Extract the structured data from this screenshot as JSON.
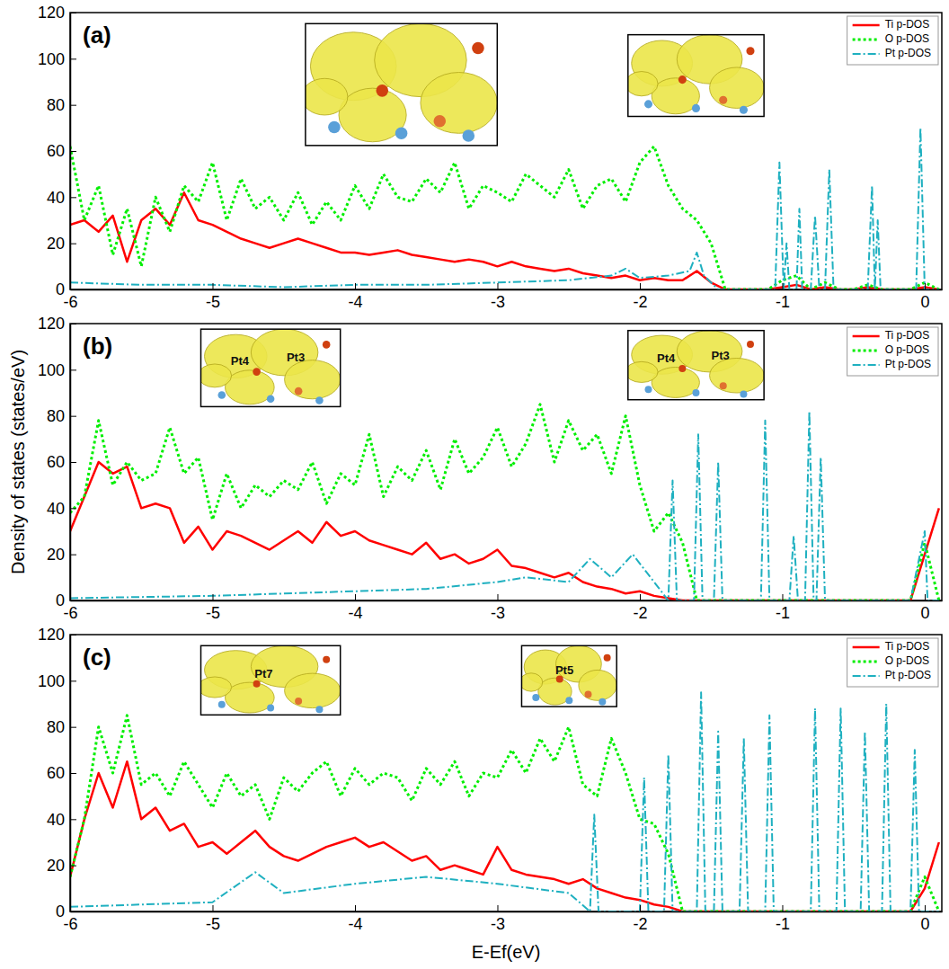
{
  "figure": {
    "y_label": "Density of states (states/eV)",
    "x_label": "E-Ef(eV)"
  },
  "chart_data": [
    {
      "type": "line",
      "title": "(a)",
      "x": [
        -6,
        -5.9,
        -5.8,
        -5.7,
        -5.6,
        -5.5,
        -5.4,
        -5.3,
        -5.2,
        -5.1,
        -5,
        -4.9,
        -4.8,
        -4.7,
        -4.6,
        -4.5,
        -4.4,
        -4.3,
        -4.2,
        -4.1,
        -4,
        -3.9,
        -3.8,
        -3.7,
        -3.6,
        -3.5,
        -3.4,
        -3.3,
        -3.2,
        -3.1,
        -3,
        -2.9,
        -2.8,
        -2.7,
        -2.6,
        -2.5,
        -2.4,
        -2.3,
        -2.2,
        -2.1,
        -2,
        -1.9,
        -1.8,
        -1.7,
        -1.6,
        -1.5,
        -1.4,
        -1.3,
        -1.2,
        -1.1,
        -1,
        -0.9,
        -0.8,
        -0.7,
        -0.6,
        -0.5,
        -0.4,
        -0.3,
        -0.2,
        -0.1,
        0,
        0.1
      ],
      "xlim": [
        -6,
        0.12
      ],
      "xticks": [
        -6,
        -5,
        -4,
        -3,
        -2,
        -1,
        0
      ],
      "ylim": [
        0,
        120
      ],
      "yticks": [
        0,
        20,
        40,
        60,
        80,
        100,
        120
      ],
      "legend": "upper right",
      "series": [
        {
          "name": "Ti p-DOS",
          "color": "#ff0000",
          "line_style": "solid",
          "values": [
            28,
            30,
            25,
            32,
            12,
            30,
            35,
            28,
            42,
            30,
            28,
            25,
            22,
            20,
            18,
            20,
            22,
            20,
            18,
            16,
            16,
            15,
            16,
            17,
            15,
            14,
            13,
            12,
            13,
            12,
            10,
            12,
            10,
            9,
            8,
            9,
            7,
            6,
            5,
            6,
            4,
            5,
            4,
            4,
            8,
            3,
            0,
            0,
            0,
            0,
            1,
            2,
            0,
            1,
            0,
            0,
            1,
            0,
            0,
            0,
            1,
            0
          ]
        },
        {
          "name": "O p-DOS",
          "color": "#00ee00",
          "line_style": "dotted",
          "values": [
            62,
            30,
            45,
            15,
            35,
            10,
            40,
            25,
            45,
            38,
            55,
            30,
            48,
            35,
            40,
            30,
            42,
            28,
            38,
            30,
            45,
            35,
            50,
            40,
            38,
            48,
            42,
            55,
            35,
            45,
            42,
            38,
            50,
            45,
            40,
            52,
            35,
            45,
            48,
            38,
            55,
            62,
            45,
            35,
            30,
            20,
            0,
            0,
            0,
            0,
            4,
            6,
            0,
            3,
            0,
            0,
            2,
            0,
            0,
            0,
            3,
            0
          ]
        },
        {
          "name": "Pt p-DOS",
          "color": "#1fb0c0",
          "line_style": "dashdot",
          "x": [
            -6,
            -5.5,
            -5,
            -4.5,
            -4,
            -3.5,
            -3,
            -2.5,
            -2.2,
            -2.1,
            -2,
            -1.8,
            -1.65,
            -1.6,
            -1.55,
            -1.45,
            -1.05,
            -1.02,
            -0.99,
            -0.97,
            -0.95,
            -0.9,
            -0.88,
            -0.86,
            -0.8,
            -0.77,
            -0.74,
            -0.7,
            -0.67,
            -0.64,
            -0.4,
            -0.37,
            -0.35,
            -0.33,
            -0.31,
            -0.06,
            -0.03,
            0,
            0.1
          ],
          "values": [
            3,
            2,
            2,
            1,
            2,
            2,
            3,
            4,
            6,
            9,
            5,
            6,
            8,
            16,
            6,
            0,
            0,
            55,
            0,
            20,
            0,
            0,
            35,
            0,
            0,
            32,
            0,
            0,
            52,
            0,
            0,
            45,
            0,
            30,
            0,
            0,
            70,
            0,
            0
          ]
        }
      ],
      "insets": [
        {
          "labels": []
        },
        {
          "labels": []
        }
      ]
    },
    {
      "type": "line",
      "title": "(b)",
      "x": [
        -6,
        -5.9,
        -5.8,
        -5.7,
        -5.6,
        -5.5,
        -5.4,
        -5.3,
        -5.2,
        -5.1,
        -5,
        -4.9,
        -4.8,
        -4.7,
        -4.6,
        -4.5,
        -4.4,
        -4.3,
        -4.2,
        -4.1,
        -4,
        -3.9,
        -3.8,
        -3.7,
        -3.6,
        -3.5,
        -3.4,
        -3.3,
        -3.2,
        -3.1,
        -3,
        -2.9,
        -2.8,
        -2.7,
        -2.6,
        -2.5,
        -2.4,
        -2.3,
        -2.2,
        -2.1,
        -2,
        -1.9,
        -1.8,
        -1.7,
        -1.6,
        -1.5,
        -1.4,
        -1.3,
        -1.2,
        -1.1,
        -1,
        -0.9,
        -0.8,
        -0.7,
        -0.6,
        -0.5,
        -0.4,
        -0.3,
        -0.2,
        -0.1,
        0,
        0.1
      ],
      "xlim": [
        -6,
        0.12
      ],
      "xticks": [
        -6,
        -5,
        -4,
        -3,
        -2,
        -1,
        0
      ],
      "ylim": [
        0,
        120
      ],
      "yticks": [
        0,
        20,
        40,
        60,
        80,
        100,
        120
      ],
      "legend": "upper right",
      "series": [
        {
          "name": "Ti p-DOS",
          "color": "#ff0000",
          "line_style": "solid",
          "values": [
            30,
            45,
            60,
            55,
            58,
            40,
            42,
            40,
            25,
            32,
            22,
            30,
            28,
            25,
            22,
            26,
            30,
            25,
            34,
            28,
            30,
            26,
            24,
            22,
            20,
            25,
            18,
            20,
            16,
            18,
            22,
            15,
            14,
            12,
            10,
            12,
            8,
            6,
            5,
            3,
            4,
            2,
            1,
            0,
            0,
            0,
            0,
            0,
            0,
            0,
            0,
            0,
            0,
            0,
            0,
            0,
            0,
            0,
            0,
            0,
            20,
            40
          ]
        },
        {
          "name": "O p-DOS",
          "color": "#00ee00",
          "line_style": "dotted",
          "values": [
            38,
            45,
            78,
            50,
            60,
            52,
            55,
            75,
            55,
            62,
            35,
            55,
            40,
            50,
            45,
            52,
            48,
            60,
            42,
            55,
            50,
            72,
            45,
            58,
            52,
            65,
            48,
            70,
            55,
            62,
            75,
            58,
            68,
            85,
            60,
            78,
            65,
            72,
            55,
            80,
            50,
            30,
            38,
            25,
            0,
            0,
            0,
            0,
            0,
            0,
            0,
            0,
            0,
            0,
            0,
            0,
            0,
            0,
            0,
            0,
            25,
            0
          ]
        },
        {
          "name": "Pt p-DOS",
          "color": "#1fb0c0",
          "line_style": "dashdot",
          "x": [
            -6,
            -5,
            -4,
            -3.5,
            -3,
            -2.8,
            -2.5,
            -2.35,
            -2.2,
            -2.05,
            -1.9,
            -1.8,
            -1.77,
            -1.74,
            -1.62,
            -1.59,
            -1.56,
            -1.48,
            -1.45,
            -1.42,
            -1.15,
            -1.12,
            -1.09,
            -0.95,
            -0.92,
            -0.89,
            -0.84,
            -0.81,
            -0.78,
            -0.76,
            -0.73,
            -0.7,
            -0.1,
            0,
            0.02,
            0.1
          ],
          "values": [
            1,
            2,
            4,
            5,
            8,
            10,
            8,
            18,
            10,
            20,
            8,
            0,
            52,
            0,
            0,
            72,
            0,
            0,
            60,
            0,
            0,
            78,
            0,
            0,
            28,
            0,
            0,
            82,
            0,
            0,
            62,
            0,
            0,
            30,
            0,
            0
          ]
        }
      ],
      "insets": [
        {
          "labels": [
            "Pt4",
            "Pt3"
          ]
        },
        {
          "labels": [
            "Pt4",
            "Pt3"
          ]
        }
      ]
    },
    {
      "type": "line",
      "title": "(c)",
      "x": [
        -6,
        -5.9,
        -5.8,
        -5.7,
        -5.6,
        -5.5,
        -5.4,
        -5.3,
        -5.2,
        -5.1,
        -5,
        -4.9,
        -4.8,
        -4.7,
        -4.6,
        -4.5,
        -4.4,
        -4.3,
        -4.2,
        -4.1,
        -4,
        -3.9,
        -3.8,
        -3.7,
        -3.6,
        -3.5,
        -3.4,
        -3.3,
        -3.2,
        -3.1,
        -3,
        -2.9,
        -2.8,
        -2.7,
        -2.6,
        -2.5,
        -2.4,
        -2.3,
        -2.2,
        -2.1,
        -2,
        -1.9,
        -1.8,
        -1.7,
        -1.6,
        -1.5,
        -1.4,
        -1.3,
        -1.2,
        -1.1,
        -1,
        -0.9,
        -0.8,
        -0.7,
        -0.6,
        -0.5,
        -0.4,
        -0.3,
        -0.2,
        -0.1,
        0,
        0.1
      ],
      "xlim": [
        -6,
        0.12
      ],
      "xticks": [
        -6,
        -5,
        -4,
        -3,
        -2,
        -1,
        0
      ],
      "ylim": [
        0,
        120
      ],
      "yticks": [
        0,
        20,
        40,
        60,
        80,
        100,
        120
      ],
      "legend": "upper right",
      "series": [
        {
          "name": "Ti p-DOS",
          "color": "#ff0000",
          "line_style": "solid",
          "values": [
            15,
            40,
            60,
            45,
            65,
            40,
            45,
            35,
            38,
            28,
            30,
            25,
            30,
            35,
            28,
            24,
            22,
            25,
            28,
            30,
            32,
            28,
            30,
            26,
            22,
            24,
            18,
            20,
            18,
            16,
            28,
            18,
            16,
            15,
            14,
            12,
            14,
            10,
            8,
            6,
            5,
            3,
            2,
            0,
            0,
            0,
            0,
            0,
            0,
            0,
            0,
            0,
            0,
            0,
            0,
            0,
            0,
            0,
            0,
            0,
            10,
            30
          ]
        },
        {
          "name": "O p-DOS",
          "color": "#00ee00",
          "line_style": "dotted",
          "values": [
            15,
            40,
            80,
            60,
            85,
            55,
            60,
            50,
            65,
            55,
            45,
            60,
            50,
            55,
            40,
            58,
            52,
            60,
            65,
            50,
            62,
            55,
            60,
            58,
            48,
            62,
            55,
            65,
            50,
            60,
            58,
            70,
            60,
            75,
            65,
            80,
            55,
            50,
            75,
            60,
            40,
            38,
            25,
            0,
            0,
            0,
            0,
            0,
            0,
            0,
            0,
            0,
            0,
            0,
            0,
            0,
            0,
            0,
            0,
            0,
            15,
            0
          ]
        },
        {
          "name": "Pt p-DOS",
          "color": "#1fb0c0",
          "line_style": "dashdot",
          "x": [
            -6,
            -5,
            -4.7,
            -4.5,
            -4,
            -3.5,
            -3,
            -2.5,
            -2.35,
            -2.32,
            -2.29,
            -2,
            -1.97,
            -1.94,
            -1.83,
            -1.8,
            -1.77,
            -1.6,
            -1.57,
            -1.54,
            -1.48,
            -1.45,
            -1.42,
            -1.3,
            -1.27,
            -1.24,
            -1.12,
            -1.09,
            -1.06,
            -0.8,
            -0.77,
            -0.74,
            -0.62,
            -0.59,
            -0.56,
            -0.45,
            -0.42,
            -0.39,
            -0.3,
            -0.27,
            -0.24,
            -0.1,
            -0.07,
            -0.04,
            0.1
          ],
          "values": [
            2,
            4,
            17,
            8,
            12,
            15,
            12,
            8,
            0,
            42,
            0,
            0,
            58,
            0,
            0,
            68,
            0,
            0,
            95,
            0,
            0,
            78,
            0,
            0,
            75,
            0,
            0,
            85,
            0,
            0,
            88,
            0,
            0,
            88,
            0,
            0,
            78,
            0,
            0,
            90,
            0,
            0,
            70,
            0,
            0
          ]
        }
      ],
      "insets": [
        {
          "labels": [
            "Pt7"
          ]
        },
        {
          "labels": [
            "Pt5"
          ]
        }
      ]
    }
  ]
}
